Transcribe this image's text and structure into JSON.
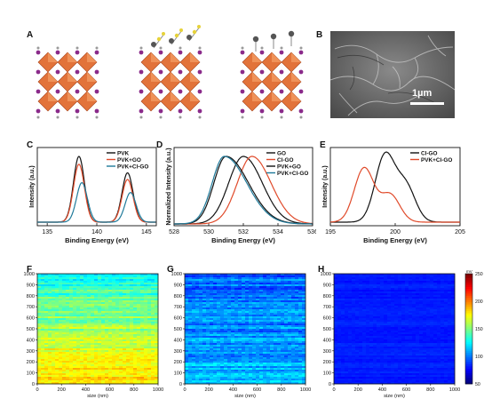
{
  "panels": {
    "A": "A",
    "B": "B",
    "C": "C",
    "D": "D",
    "E": "E",
    "F": "F",
    "G": "G",
    "H": "H"
  },
  "sem": {
    "scale_bar_label": "1µm"
  },
  "colors": {
    "pvk": "#111111",
    "pvk_go": "#e04a2a",
    "pvk_clgo": "#1f7a9a",
    "go": "#111111",
    "clgo": "#e04a2a",
    "pvk_go_d": "#111111",
    "pvk_clgo_d": "#1f7a9a",
    "octahedron": "#e2733a",
    "iodine": "#8a2a8a",
    "graphene_o": "#555555",
    "chlorine": "#e6d23a"
  },
  "heatmaps": {
    "colorbar_unit": "mV",
    "colorbar_ticks": [
      "250",
      "200",
      "150",
      "100",
      "50"
    ],
    "xlabel": "size (nm)",
    "yticks": [
      "1000",
      "900",
      "800",
      "700",
      "600",
      "500",
      "400",
      "300",
      "200",
      "100",
      "0"
    ],
    "xticks": [
      "0",
      "200",
      "400",
      "600",
      "800",
      "1000"
    ]
  },
  "chart_data": [
    {
      "type": "line",
      "panel": "C",
      "xlabel": "Binding Energy (eV)",
      "ylabel": "Intensity (a.u.)",
      "xlim": [
        134,
        146
      ],
      "xticks": [
        135,
        140,
        145
      ],
      "series": [
        {
          "name": "PVK",
          "peaks": [
            [
              138.2,
              1.0
            ],
            [
              143.1,
              0.75
            ]
          ]
        },
        {
          "name": "PVK+GO",
          "peaks": [
            [
              138.2,
              0.88
            ],
            [
              143.1,
              0.65
            ]
          ]
        },
        {
          "name": "PVK+Cl-GO",
          "peaks": [
            [
              138.5,
              0.6
            ],
            [
              143.4,
              0.45
            ]
          ]
        }
      ]
    },
    {
      "type": "line",
      "panel": "D",
      "xlabel": "Binding Energy (eV)",
      "ylabel": "Normalized Intensity (a.u.)",
      "xlim": [
        528,
        536
      ],
      "xticks": [
        528,
        530,
        532,
        534,
        536
      ],
      "series": [
        {
          "name": "GO",
          "peak": 532.0
        },
        {
          "name": "Cl-GO",
          "peak": 532.5
        },
        {
          "name": "PVK+GO",
          "peak": 531.0
        },
        {
          "name": "PVK+Cl-GO",
          "peak": 530.9
        }
      ]
    },
    {
      "type": "line",
      "panel": "E",
      "xlabel": "Binding Energy (eV)",
      "ylabel": "Intensity (a.u.)",
      "xlim": [
        195,
        205
      ],
      "xticks": [
        195,
        200,
        205
      ],
      "series": [
        {
          "name": "Cl-GO",
          "peaks": [
            [
              199.2,
              1.0
            ],
            [
              200.8,
              0.55
            ]
          ]
        },
        {
          "name": "PVK+Cl-GO",
          "peaks": [
            [
              197.6,
              0.82
            ],
            [
              199.6,
              0.42
            ]
          ]
        }
      ]
    },
    {
      "type": "heatmap",
      "panel": "F",
      "xlabel": "size (nm)",
      "xlim": [
        0,
        1000
      ],
      "ylim": [
        0,
        1000
      ],
      "level_mV_top": 130,
      "level_mV_bottom": 185
    },
    {
      "type": "heatmap",
      "panel": "G",
      "xlabel": "size (nm)",
      "xlim": [
        0,
        1000
      ],
      "ylim": [
        0,
        1000
      ],
      "level_mV_top": 95,
      "level_mV_bottom": 110
    },
    {
      "type": "heatmap",
      "panel": "H",
      "xlabel": "size (nm)",
      "xlim": [
        0,
        1000
      ],
      "ylim": [
        0,
        1000
      ],
      "level_mV_top": 80,
      "level_mV_bottom": 80,
      "colorbar": {
        "unit": "mV",
        "range": [
          50,
          250
        ]
      }
    }
  ]
}
